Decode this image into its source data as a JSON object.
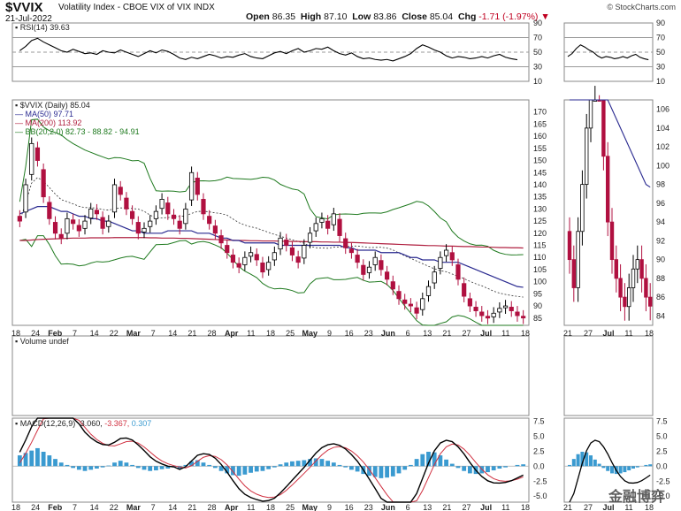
{
  "header": {
    "symbol": "$VVIX",
    "description": "Volatility Index - CBOE VIX of VIX INDX",
    "date": "21-Jul-2022",
    "open_label": "Open",
    "open": "86.35",
    "high_label": "High",
    "high": "87.10",
    "low_label": "Low",
    "low": "83.86",
    "close_label": "Close",
    "close": "85.04",
    "chg_label": "Chg",
    "chg": "-1.71 (-1.97%)",
    "chg_arrow": "▼",
    "source": "© StockCharts.com"
  },
  "watermark": "金融博弈",
  "colors": {
    "up": "#000000",
    "down": "#b01040",
    "ma50": "#2a2a90",
    "ma200": "#b02040",
    "bb": "#1f7a1f",
    "rsi": "#000000",
    "macd": "#000000",
    "signal": "#d03040",
    "hist": "#3a9ad0"
  },
  "chart_data": [
    {
      "type": "line",
      "panel": "RSI",
      "legend": "RSI(14) 39.63",
      "ylim": [
        10,
        90
      ],
      "yticks": [
        "90",
        "70",
        "50",
        "30",
        "10"
      ],
      "reference_lines": [
        70,
        50,
        30
      ],
      "values": [
        52,
        58,
        66,
        69,
        64,
        60,
        56,
        52,
        50,
        54,
        51,
        48,
        49,
        47,
        52,
        50,
        49,
        53,
        50,
        47,
        44,
        48,
        52,
        49,
        53,
        51,
        47,
        42,
        40,
        43,
        41,
        44,
        47,
        45,
        42,
        44,
        43,
        46,
        48,
        44,
        42,
        41,
        45,
        49,
        51,
        48,
        52,
        55,
        50,
        52,
        55,
        54,
        57,
        52,
        48,
        46,
        49,
        44,
        41,
        42,
        40,
        39,
        40,
        38,
        41,
        44,
        48,
        55,
        60,
        57,
        53,
        50,
        45,
        42,
        44,
        43,
        41,
        42,
        44,
        42,
        45,
        47,
        43,
        41,
        39.63
      ]
    },
    {
      "type": "candlestick",
      "panel": "price",
      "legend": [
        "$VVIX (Daily) 85.04",
        "MA(50) 97.71",
        "MA(200) 113.92",
        "BB(20,2.0) 82.73 - 88.82 - 94.91"
      ],
      "ylim": [
        82,
        175
      ],
      "yticks": [
        "170",
        "165",
        "160",
        "155",
        "150",
        "145",
        "140",
        "135",
        "130",
        "125",
        "120",
        "115",
        "110",
        "105",
        "100",
        "95",
        "90",
        "85"
      ],
      "xticks": [
        "18",
        "24",
        "Feb",
        "7",
        "14",
        "22",
        "Mar",
        "7",
        "14",
        "21",
        "28",
        "Apr",
        "11",
        "18",
        "25",
        "May",
        "9",
        "16",
        "23",
        "Jun",
        "6",
        "13",
        "21",
        "27",
        "Jul",
        "11",
        "18"
      ],
      "close": [
        125,
        140,
        157,
        150,
        135,
        126,
        120,
        118,
        126,
        124,
        121,
        125,
        130,
        128,
        122,
        125,
        140,
        136,
        130,
        126,
        120,
        122,
        125,
        129,
        134,
        128,
        126,
        122,
        130,
        145,
        136,
        128,
        124,
        120,
        116,
        112,
        108,
        106,
        110,
        112,
        109,
        104,
        108,
        112,
        118,
        115,
        111,
        108,
        115,
        120,
        124,
        126,
        122,
        128,
        119,
        114,
        112,
        108,
        103,
        106,
        110,
        105,
        101,
        97,
        93,
        91,
        90,
        87,
        93,
        98,
        104,
        110,
        113,
        109,
        101,
        94,
        90,
        88,
        86,
        85,
        87,
        89,
        90,
        88,
        86,
        85.04
      ],
      "ma50": [
        128,
        129,
        130,
        131,
        131,
        131,
        130,
        129,
        129,
        128,
        127,
        127,
        126,
        126,
        125,
        125,
        124,
        123,
        122,
        121,
        121,
        120,
        120,
        120,
        120,
        121,
        121,
        121,
        121,
        121,
        120,
        120,
        120,
        119,
        118,
        118,
        117,
        117,
        116,
        116,
        116,
        116,
        116,
        116,
        115,
        115,
        115,
        115,
        115,
        115,
        115,
        115,
        115,
        115,
        115,
        114,
        114,
        113,
        113,
        113,
        113,
        112,
        112,
        112,
        112,
        111,
        110,
        110,
        109,
        109,
        109,
        108,
        108,
        108,
        108,
        107,
        106,
        105,
        104,
        103,
        102,
        101,
        100,
        99,
        98,
        97.71
      ],
      "ma200": [
        117,
        117,
        117.2,
        117.4,
        117.5,
        117.6,
        117.7,
        117.8,
        117.9,
        118,
        118,
        118,
        118.1,
        118.1,
        118.1,
        118.1,
        118.2,
        118.2,
        118.2,
        118.2,
        118.2,
        118.2,
        118.1,
        118.1,
        118,
        118,
        118,
        117.9,
        117.9,
        117.8,
        117.7,
        117.6,
        117.5,
        117.4,
        117.3,
        117.2,
        117.1,
        117,
        117,
        116.9,
        116.9,
        116.8,
        116.8,
        116.8,
        116.7,
        116.7,
        116.6,
        116.6,
        116.5,
        116.5,
        116.5,
        116.4,
        116.4,
        116.3,
        116.3,
        116.2,
        116.2,
        116.1,
        116,
        115.9,
        115.8,
        115.7,
        115.6,
        115.5,
        115.4,
        115.3,
        115.2,
        115.1,
        115,
        114.9,
        114.9,
        114.8,
        114.7,
        114.7,
        114.6,
        114.5,
        114.5,
        114.4,
        114.3,
        114.3,
        114.2,
        114.1,
        114.1,
        114,
        114,
        113.92
      ]
    },
    {
      "type": "bar",
      "panel": "MACD",
      "legend_prefix": "MACD(12,26,9)",
      "macd_value": "-3.060",
      "signal_value": "-3.367",
      "hist_value": "0.307",
      "ylim": [
        -6,
        8
      ],
      "yticks": [
        "7.5",
        "5.0",
        "2.5",
        "0.0",
        "-2.5",
        "-5.0"
      ],
      "histogram": [
        1.8,
        2.2,
        2.6,
        3.0,
        2.4,
        1.8,
        1.2,
        0.6,
        0.2,
        -0.3,
        -0.6,
        -0.8,
        -0.6,
        -0.4,
        -0.2,
        0.1,
        0.6,
        0.9,
        0.6,
        0.2,
        -0.3,
        -0.6,
        -0.8,
        -0.7,
        -0.5,
        -0.4,
        -0.2,
        -0.4,
        0.2,
        0.8,
        1.0,
        0.6,
        0.2,
        -0.3,
        -0.8,
        -1.2,
        -1.5,
        -1.6,
        -1.4,
        -1.1,
        -0.9,
        -0.8,
        -0.5,
        -0.2,
        0.3,
        0.6,
        0.8,
        0.9,
        1.0,
        1.2,
        1.3,
        1.2,
        0.9,
        0.6,
        0.2,
        -0.2,
        -0.6,
        -0.9,
        -1.3,
        -1.6,
        -1.8,
        -2.0,
        -1.9,
        -1.7,
        -1.2,
        -0.6,
        0.2,
        1.2,
        2.0,
        2.4,
        2.3,
        1.8,
        1.1,
        0.4,
        -0.3,
        -0.8,
        -1.2,
        -1.3,
        -1.2,
        -1.0,
        -0.7,
        -0.4,
        -0.2,
        0.0,
        0.2,
        0.307
      ]
    }
  ],
  "right_panel": {
    "price_yticks": [
      "106",
      "104",
      "102",
      "100",
      "98",
      "96",
      "94",
      "92",
      "90",
      "88",
      "86",
      "84"
    ],
    "xticks": [
      "21",
      "27",
      "Jul",
      "11",
      "18"
    ],
    "rsi_yticks": [
      "90",
      "70",
      "50",
      "30",
      "10"
    ],
    "macd_yticks": [
      "7.5",
      "5.0",
      "2.5",
      "0.0",
      "-2.5",
      "-5.0"
    ]
  },
  "volume_legend": "Volume undef"
}
